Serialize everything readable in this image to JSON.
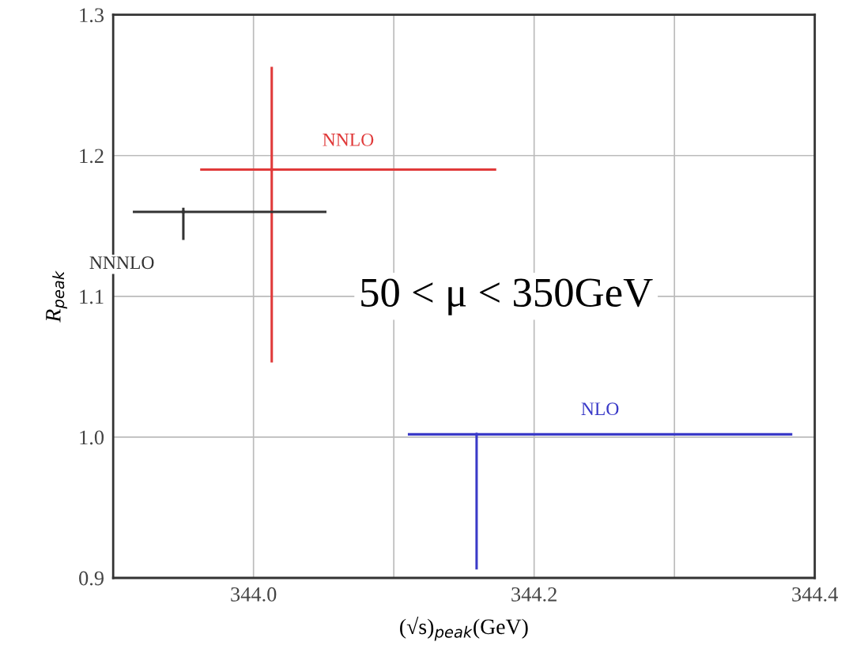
{
  "chart_data": {
    "type": "scatter",
    "xlabel": "(√s)$_{peak}$(GeV)",
    "ylabel": "R$_{peak}$",
    "xlim": [
      343.9,
      344.4
    ],
    "xticks": [
      {
        "value": 344.0,
        "label": "344.0"
      },
      {
        "value": 344.1,
        "label": null
      },
      {
        "value": 344.2,
        "label": "344.2"
      },
      {
        "value": 344.3,
        "label": null
      },
      {
        "value": 344.4,
        "label": "344.4"
      }
    ],
    "ylim": [
      0.9,
      1.3
    ],
    "yticks": [
      0.9,
      {
        "value": 1.0,
        "label": "1.0"
      },
      1.1,
      1.2,
      1.3
    ],
    "grid": true,
    "marker": "none",
    "series": [
      {
        "name": "NNLO",
        "color": "#e03a3a",
        "x": [
          344.013
        ],
        "values": [
          1.19
        ],
        "errors": [
          [
            1.053,
            1.263
          ]
        ],
        "xerrors": [
          [
            343.962,
            344.173
          ]
        ]
      },
      {
        "name": "NNNLO",
        "color": "#333333",
        "x": [
          343.95
        ],
        "values": [
          1.16
        ],
        "errors": [
          [
            1.14,
            1.163
          ]
        ],
        "xerrors": [
          [
            343.914,
            344.052
          ]
        ]
      },
      {
        "name": "NLO",
        "color": "#3a3ac8",
        "x": [
          344.159
        ],
        "values": [
          1.002
        ],
        "errors": [
          [
            0.906,
            1.002
          ]
        ],
        "xerrors": [
          [
            344.11,
            344.384
          ]
        ]
      }
    ],
    "annotations": [
      "50 < μ < 350GeV"
    ]
  }
}
